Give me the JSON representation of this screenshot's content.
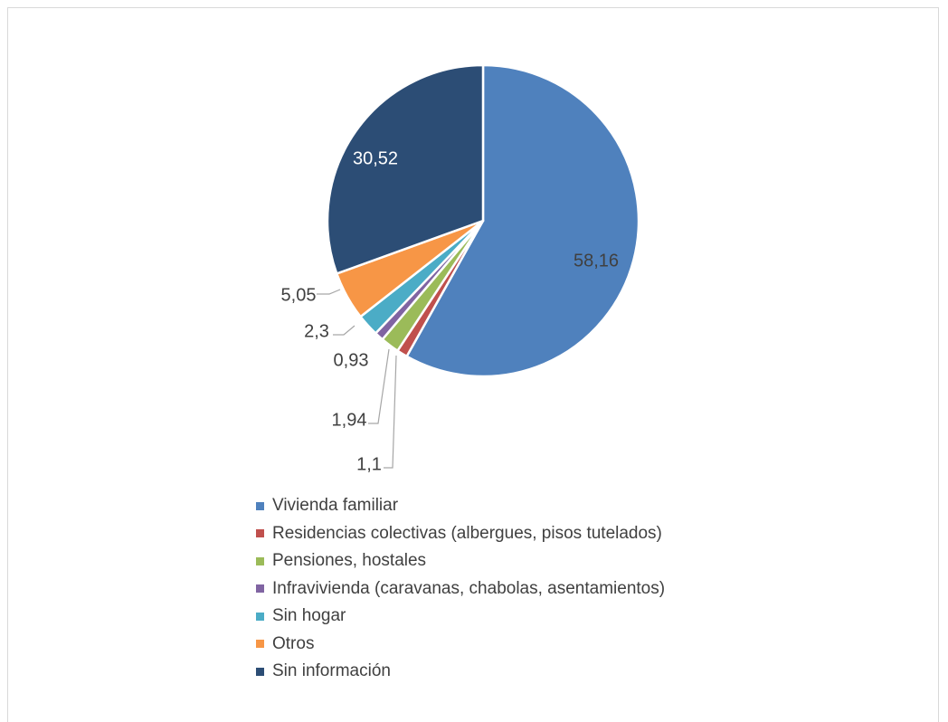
{
  "chart_data": {
    "type": "pie",
    "title": "",
    "slices": [
      {
        "label": "Vivienda familiar",
        "value": 58.16,
        "value_label": "58,16",
        "color": "#4F81BD"
      },
      {
        "label": "Residencias colectivas (albergues, pisos tutelados)",
        "value": 1.1,
        "value_label": "1,1",
        "color": "#C0504D"
      },
      {
        "label": "Pensiones, hostales",
        "value": 1.94,
        "value_label": "1,94",
        "color": "#9BBB59"
      },
      {
        "label": "Infravivienda (caravanas, chabolas, asentamientos)",
        "value": 0.93,
        "value_label": "0,93",
        "color": "#8064A2"
      },
      {
        "label": "Sin hogar",
        "value": 2.3,
        "value_label": "2,3",
        "color": "#4BACC6"
      },
      {
        "label": "Otros",
        "value": 5.05,
        "value_label": "5,05",
        "color": "#F79646"
      },
      {
        "label": "Sin información",
        "value": 30.52,
        "value_label": "30,52",
        "color": "#2C4D75"
      }
    ],
    "legend_position": "bottom",
    "label_color_dark": "#404040",
    "label_color_light": "#ffffff",
    "leader_color": "#a6a6a6"
  }
}
